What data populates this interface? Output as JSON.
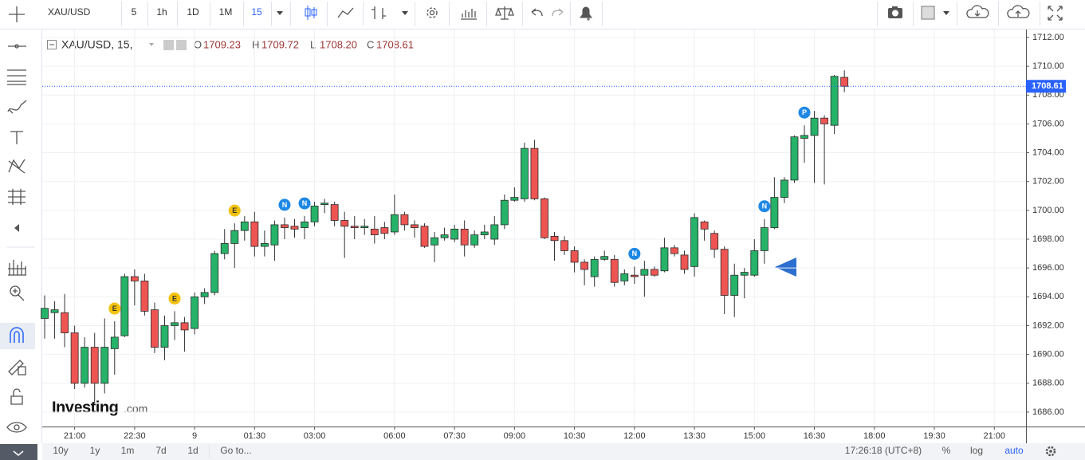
{
  "toolbar": {
    "symbol": "XAU/USD",
    "intervals": [
      "5",
      "1h",
      "1D",
      "1M",
      "15"
    ]
  },
  "chart_data": {
    "type": "candlestick",
    "title": "XAU/USD, 15,",
    "legend": {
      "labels": [
        "O",
        "H",
        "L",
        "C"
      ],
      "value_labels": [
        "1709.23",
        "1709.72",
        "1708.20",
        "1708.61"
      ]
    },
    "open": [
      1692.5,
      1692.9,
      1692.9,
      1691.5,
      1688.0,
      1690.5,
      1688.0,
      1690.4,
      1691.3,
      1695.4,
      1695.1,
      1693.1,
      1690.5,
      1692.0,
      1692.2,
      1691.8,
      1694.0,
      1694.3,
      1697.0,
      1697.7,
      1698.6,
      1699.2,
      1697.5,
      1697.6,
      1699.0,
      1698.9,
      1698.8,
      1699.2,
      1700.4,
      1700.4,
      1699.3,
      1698.9,
      1698.8,
      1698.7,
      1698.8,
      1698.5,
      1699.7,
      1699.0,
      1698.9,
      1697.6,
      1698.1,
      1698.0,
      1698.7,
      1697.6,
      1698.3,
      1698.0,
      1699.0,
      1700.7,
      1700.8,
      1704.3,
      1700.8,
      1698.2,
      1697.9,
      1697.2,
      1696.4,
      1695.4,
      1696.6,
      1696.6,
      1695.1,
      1695.5,
      1695.5,
      1695.9,
      1695.8,
      1697.4,
      1696.9,
      1696.1,
      1699.2,
      1698.4,
      1697.3,
      1694.1,
      1695.5,
      1695.5,
      1697.2,
      1698.8,
      1700.9,
      1702.1,
      1705.0,
      1705.2,
      1706.4,
      1705.9,
      1709.23
    ],
    "high": [
      1694.1,
      1693.7,
      1694.2,
      1692.0,
      1691.2,
      1691.5,
      1692.5,
      1692.3,
      1695.6,
      1695.9,
      1695.6,
      1693.6,
      1692.7,
      1693.0,
      1692.6,
      1694.3,
      1694.6,
      1697.2,
      1698.7,
      1699.1,
      1699.6,
      1699.9,
      1698.6,
      1699.3,
      1699.5,
      1699.4,
      1699.6,
      1700.6,
      1700.8,
      1700.6,
      1699.9,
      1699.6,
      1699.4,
      1699.6,
      1699.2,
      1701.1,
      1699.9,
      1699.3,
      1699.1,
      1698.5,
      1698.8,
      1699.0,
      1699.3,
      1698.6,
      1699.0,
      1699.6,
      1701.1,
      1701.6,
      1704.7,
      1704.9,
      1700.9,
      1698.5,
      1698.2,
      1697.5,
      1696.6,
      1696.8,
      1697.2,
      1696.9,
      1695.9,
      1696.1,
      1696.5,
      1696.1,
      1698.1,
      1697.6,
      1697.2,
      1699.8,
      1699.3,
      1698.6,
      1697.5,
      1696.3,
      1696.0,
      1698.0,
      1699.4,
      1702.3,
      1702.3,
      1705.2,
      1705.9,
      1706.9,
      1706.6,
      1709.4,
      1709.72
    ],
    "low": [
      1691.1,
      1691.1,
      1690.5,
      1687.6,
      1687.7,
      1686.6,
      1687.3,
      1688.6,
      1691.2,
      1693.4,
      1692.7,
      1690.1,
      1689.6,
      1691.0,
      1690.2,
      1691.4,
      1693.5,
      1694.1,
      1696.6,
      1696.0,
      1697.9,
      1696.8,
      1696.8,
      1696.5,
      1698.0,
      1698.1,
      1698.0,
      1698.9,
      1699.8,
      1698.9,
      1696.7,
      1698.0,
      1698.3,
      1697.7,
      1698.0,
      1698.3,
      1698.6,
      1698.1,
      1697.4,
      1696.4,
      1697.9,
      1697.8,
      1696.8,
      1697.4,
      1698.0,
      1697.6,
      1698.7,
      1700.6,
      1700.6,
      1700.7,
      1698.0,
      1696.5,
      1696.9,
      1695.7,
      1694.8,
      1694.7,
      1696.5,
      1694.7,
      1694.8,
      1694.9,
      1694.0,
      1695.4,
      1695.7,
      1696.8,
      1695.6,
      1695.4,
      1697.9,
      1696.7,
      1692.8,
      1692.6,
      1693.9,
      1695.4,
      1696.3,
      1698.7,
      1700.5,
      1701.9,
      1703.3,
      1701.9,
      1701.8,
      1705.3,
      1708.2
    ],
    "close": [
      1693.2,
      1693.1,
      1691.5,
      1688.0,
      1690.5,
      1688.0,
      1690.5,
      1691.2,
      1695.4,
      1695.1,
      1693.0,
      1690.5,
      1692.0,
      1692.2,
      1691.7,
      1694.0,
      1694.3,
      1697.0,
      1697.7,
      1698.6,
      1699.2,
      1697.5,
      1697.7,
      1699.0,
      1698.8,
      1698.7,
      1699.2,
      1700.3,
      1700.5,
      1699.3,
      1698.9,
      1698.8,
      1698.9,
      1698.3,
      1698.4,
      1699.7,
      1699.0,
      1698.8,
      1697.5,
      1698.1,
      1698.3,
      1698.7,
      1697.6,
      1698.3,
      1698.5,
      1699.0,
      1700.7,
      1700.9,
      1704.3,
      1700.8,
      1698.1,
      1697.9,
      1697.2,
      1696.4,
      1695.9,
      1696.6,
      1696.8,
      1695.0,
      1695.6,
      1695.4,
      1695.9,
      1695.5,
      1697.4,
      1697.0,
      1695.9,
      1699.5,
      1698.7,
      1697.3,
      1694.1,
      1695.5,
      1695.7,
      1697.2,
      1698.8,
      1700.9,
      1702.1,
      1705.1,
      1705.2,
      1706.4,
      1706.0,
      1709.3,
      1708.61
    ],
    "up_color": "#26b268",
    "down_color": "#ee5552",
    "wick_color": "#333333",
    "price_line_color": "#2962ff",
    "xlim": [
      -0.24,
      98.17
    ],
    "xticks": [
      {
        "value": 3,
        "label": "21:00"
      },
      {
        "value": 9,
        "label": "22:30"
      },
      {
        "value": 15,
        "label": "9"
      },
      {
        "value": 21,
        "label": "01:30"
      },
      {
        "value": 27,
        "label": "03:00"
      },
      {
        "value": 35,
        "label": "06:00"
      },
      {
        "value": 41,
        "label": "07:30"
      },
      {
        "value": 47,
        "label": "09:00"
      },
      {
        "value": 53,
        "label": "10:30"
      },
      {
        "value": 59,
        "label": "12:00"
      },
      {
        "value": 65,
        "label": "13:30"
      },
      {
        "value": 71,
        "label": "15:00"
      },
      {
        "value": 77,
        "label": "16:30"
      },
      {
        "value": 83,
        "label": "18:00"
      },
      {
        "value": 89,
        "label": "19:30"
      },
      {
        "value": 95,
        "label": "21:00"
      }
    ],
    "ylim": [
      1685.0,
      1712.55
    ],
    "yticks": [
      {
        "value": 1686,
        "label": "1686.00"
      },
      {
        "value": 1688,
        "label": "1688.00"
      },
      {
        "value": 1690,
        "label": "1690.00"
      },
      {
        "value": 1692,
        "label": "1692.00"
      },
      {
        "value": 1694,
        "label": "1694.00"
      },
      {
        "value": 1696,
        "label": "1696.00"
      },
      {
        "value": 1698,
        "label": "1698.00"
      },
      {
        "value": 1700,
        "label": "1700.00"
      },
      {
        "value": 1702,
        "label": "1702.00"
      },
      {
        "value": 1704,
        "label": "1704.00"
      },
      {
        "value": 1706,
        "label": "1706.00"
      },
      {
        "value": 1708,
        "label": "1708.00"
      },
      {
        "value": 1710,
        "label": "1710.00"
      },
      {
        "value": 1712,
        "label": "1712.00"
      }
    ],
    "grid": true,
    "events": [
      {
        "index": 7,
        "label": "E",
        "color": "#f4c20d"
      },
      {
        "index": 13,
        "label": "E",
        "color": "#f4c20d"
      },
      {
        "index": 19,
        "label": "E",
        "color": "#f4c20d"
      },
      {
        "index": 24,
        "label": "N",
        "color": "#1e88e5"
      },
      {
        "index": 26,
        "label": "N",
        "color": "#1e88e5"
      },
      {
        "index": 59,
        "label": "N",
        "color": "#1e88e5"
      },
      {
        "index": 72,
        "label": "N",
        "color": "#1e88e5"
      },
      {
        "index": 76,
        "label": "P",
        "color": "#1e88e5"
      }
    ]
  },
  "watermark": {
    "brand": "Investing",
    "suffix": ".com"
  },
  "bottom_bar": {
    "ranges": [
      "10y",
      "1y",
      "1m",
      "7d",
      "1d"
    ],
    "goto": "Go to...",
    "clock": "17:26:18 (UTC+8)",
    "options": [
      "%",
      "log",
      "auto"
    ]
  }
}
